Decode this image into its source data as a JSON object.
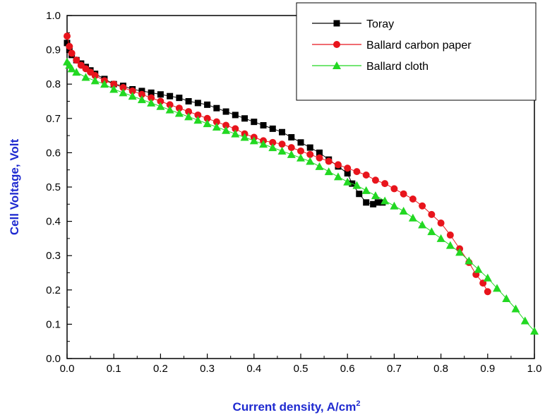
{
  "chart_data": {
    "type": "line",
    "xlabel": "Current density, A/cm",
    "xlabel_sup": "2",
    "ylabel": "Cell Voltage, Volt",
    "xlim": [
      0,
      1.0
    ],
    "ylim": [
      0,
      1.0
    ],
    "x_ticks": [
      "0.0",
      "0.1",
      "0.2",
      "0.3",
      "0.4",
      "0.5",
      "0.6",
      "0.7",
      "0.8",
      "0.9",
      "1.0"
    ],
    "y_ticks": [
      "0.0",
      "0.1",
      "0.2",
      "0.3",
      "0.4",
      "0.5",
      "0.6",
      "0.7",
      "0.8",
      "0.9",
      "1.0"
    ],
    "grid": false,
    "legend_position": "top-right",
    "series": [
      {
        "name": "Toray",
        "color": "#000000",
        "marker": "square",
        "x": [
          0.0,
          0.005,
          0.01,
          0.02,
          0.03,
          0.04,
          0.05,
          0.06,
          0.08,
          0.1,
          0.12,
          0.14,
          0.16,
          0.18,
          0.2,
          0.22,
          0.24,
          0.26,
          0.28,
          0.3,
          0.32,
          0.34,
          0.36,
          0.38,
          0.4,
          0.42,
          0.44,
          0.46,
          0.48,
          0.5,
          0.52,
          0.54,
          0.56,
          0.58,
          0.6,
          0.61,
          0.625,
          0.64,
          0.655,
          0.665,
          0.675
        ],
        "y": [
          0.92,
          0.9,
          0.885,
          0.87,
          0.86,
          0.85,
          0.84,
          0.83,
          0.815,
          0.8,
          0.795,
          0.785,
          0.78,
          0.775,
          0.77,
          0.765,
          0.76,
          0.75,
          0.745,
          0.74,
          0.73,
          0.72,
          0.71,
          0.7,
          0.69,
          0.68,
          0.67,
          0.66,
          0.645,
          0.63,
          0.615,
          0.6,
          0.58,
          0.56,
          0.54,
          0.51,
          0.48,
          0.455,
          0.45,
          0.455,
          0.455
        ]
      },
      {
        "name": "Ballard carbon paper",
        "color": "#e8141c",
        "marker": "circle",
        "x": [
          0.0,
          0.005,
          0.01,
          0.02,
          0.03,
          0.04,
          0.05,
          0.06,
          0.08,
          0.1,
          0.12,
          0.14,
          0.16,
          0.18,
          0.2,
          0.22,
          0.24,
          0.26,
          0.28,
          0.3,
          0.32,
          0.34,
          0.36,
          0.38,
          0.4,
          0.42,
          0.44,
          0.46,
          0.48,
          0.5,
          0.52,
          0.54,
          0.56,
          0.58,
          0.6,
          0.62,
          0.64,
          0.66,
          0.68,
          0.7,
          0.72,
          0.74,
          0.76,
          0.78,
          0.8,
          0.82,
          0.84,
          0.86,
          0.875,
          0.89,
          0.9
        ],
        "y": [
          0.94,
          0.91,
          0.89,
          0.87,
          0.855,
          0.845,
          0.835,
          0.825,
          0.81,
          0.8,
          0.79,
          0.78,
          0.77,
          0.76,
          0.75,
          0.74,
          0.73,
          0.72,
          0.71,
          0.7,
          0.69,
          0.68,
          0.67,
          0.655,
          0.645,
          0.635,
          0.63,
          0.625,
          0.615,
          0.605,
          0.595,
          0.585,
          0.575,
          0.565,
          0.555,
          0.545,
          0.535,
          0.52,
          0.51,
          0.495,
          0.48,
          0.465,
          0.445,
          0.42,
          0.395,
          0.36,
          0.32,
          0.28,
          0.245,
          0.22,
          0.195
        ]
      },
      {
        "name": "Ballard cloth",
        "color": "#22d822",
        "marker": "triangle",
        "x": [
          0.0,
          0.005,
          0.01,
          0.02,
          0.04,
          0.06,
          0.08,
          0.1,
          0.12,
          0.14,
          0.16,
          0.18,
          0.2,
          0.22,
          0.24,
          0.26,
          0.28,
          0.3,
          0.32,
          0.34,
          0.36,
          0.38,
          0.4,
          0.42,
          0.44,
          0.46,
          0.48,
          0.5,
          0.52,
          0.54,
          0.56,
          0.58,
          0.6,
          0.62,
          0.64,
          0.66,
          0.68,
          0.7,
          0.72,
          0.74,
          0.76,
          0.78,
          0.8,
          0.82,
          0.84,
          0.86,
          0.88,
          0.9,
          0.92,
          0.94,
          0.96,
          0.98,
          1.0
        ],
        "y": [
          0.865,
          0.855,
          0.845,
          0.835,
          0.82,
          0.81,
          0.8,
          0.785,
          0.775,
          0.765,
          0.755,
          0.745,
          0.735,
          0.725,
          0.715,
          0.705,
          0.695,
          0.685,
          0.675,
          0.665,
          0.655,
          0.645,
          0.635,
          0.625,
          0.615,
          0.605,
          0.595,
          0.585,
          0.575,
          0.56,
          0.545,
          0.53,
          0.515,
          0.505,
          0.49,
          0.475,
          0.46,
          0.445,
          0.43,
          0.41,
          0.39,
          0.37,
          0.35,
          0.33,
          0.31,
          0.285,
          0.26,
          0.235,
          0.205,
          0.175,
          0.145,
          0.11,
          0.08
        ]
      }
    ]
  }
}
